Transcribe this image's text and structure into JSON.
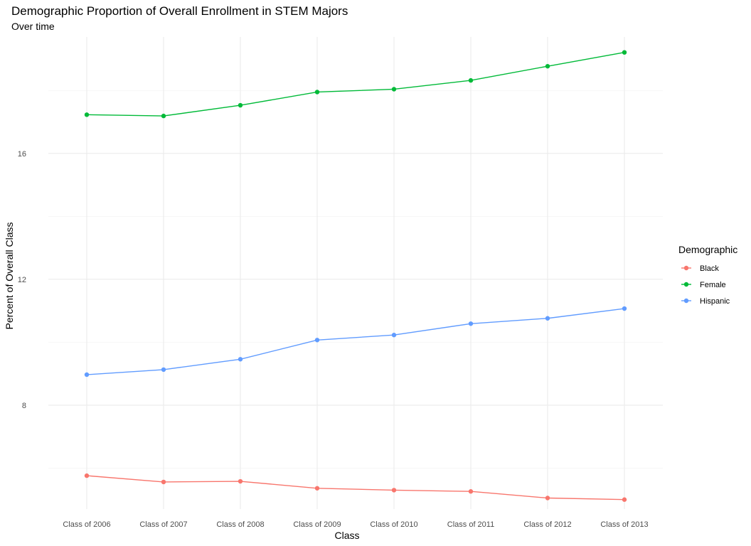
{
  "chart_data": {
    "type": "line",
    "title": "Demographic Proportion of Overall Enrollment in STEM Majors",
    "subtitle": "Over time",
    "xlabel": "Class",
    "ylabel": "Percent of Overall Class",
    "categories": [
      "Class of 2006",
      "Class of 2007",
      "Class of 2008",
      "Class of 2009",
      "Class of 2010",
      "Class of 2011",
      "Class of 2012",
      "Class of 2013"
    ],
    "ylim": [
      4.7,
      19.7
    ],
    "yticks": [
      8,
      12,
      16
    ],
    "y_minor_ticks": [
      6,
      10,
      14,
      18
    ],
    "grid": true,
    "legend": {
      "title": "Demographic",
      "position": "right"
    },
    "series": [
      {
        "name": "Black",
        "color": "#F8766D",
        "values": [
          5.76,
          5.56,
          5.58,
          5.36,
          5.3,
          5.26,
          5.05,
          5.0
        ]
      },
      {
        "name": "Female",
        "color": "#00BA38",
        "values": [
          17.23,
          17.19,
          17.53,
          17.95,
          18.04,
          18.32,
          18.77,
          19.21
        ]
      },
      {
        "name": "Hispanic",
        "color": "#619CFF",
        "values": [
          8.97,
          9.13,
          9.46,
          10.07,
          10.23,
          10.59,
          10.76,
          11.07
        ]
      }
    ]
  }
}
